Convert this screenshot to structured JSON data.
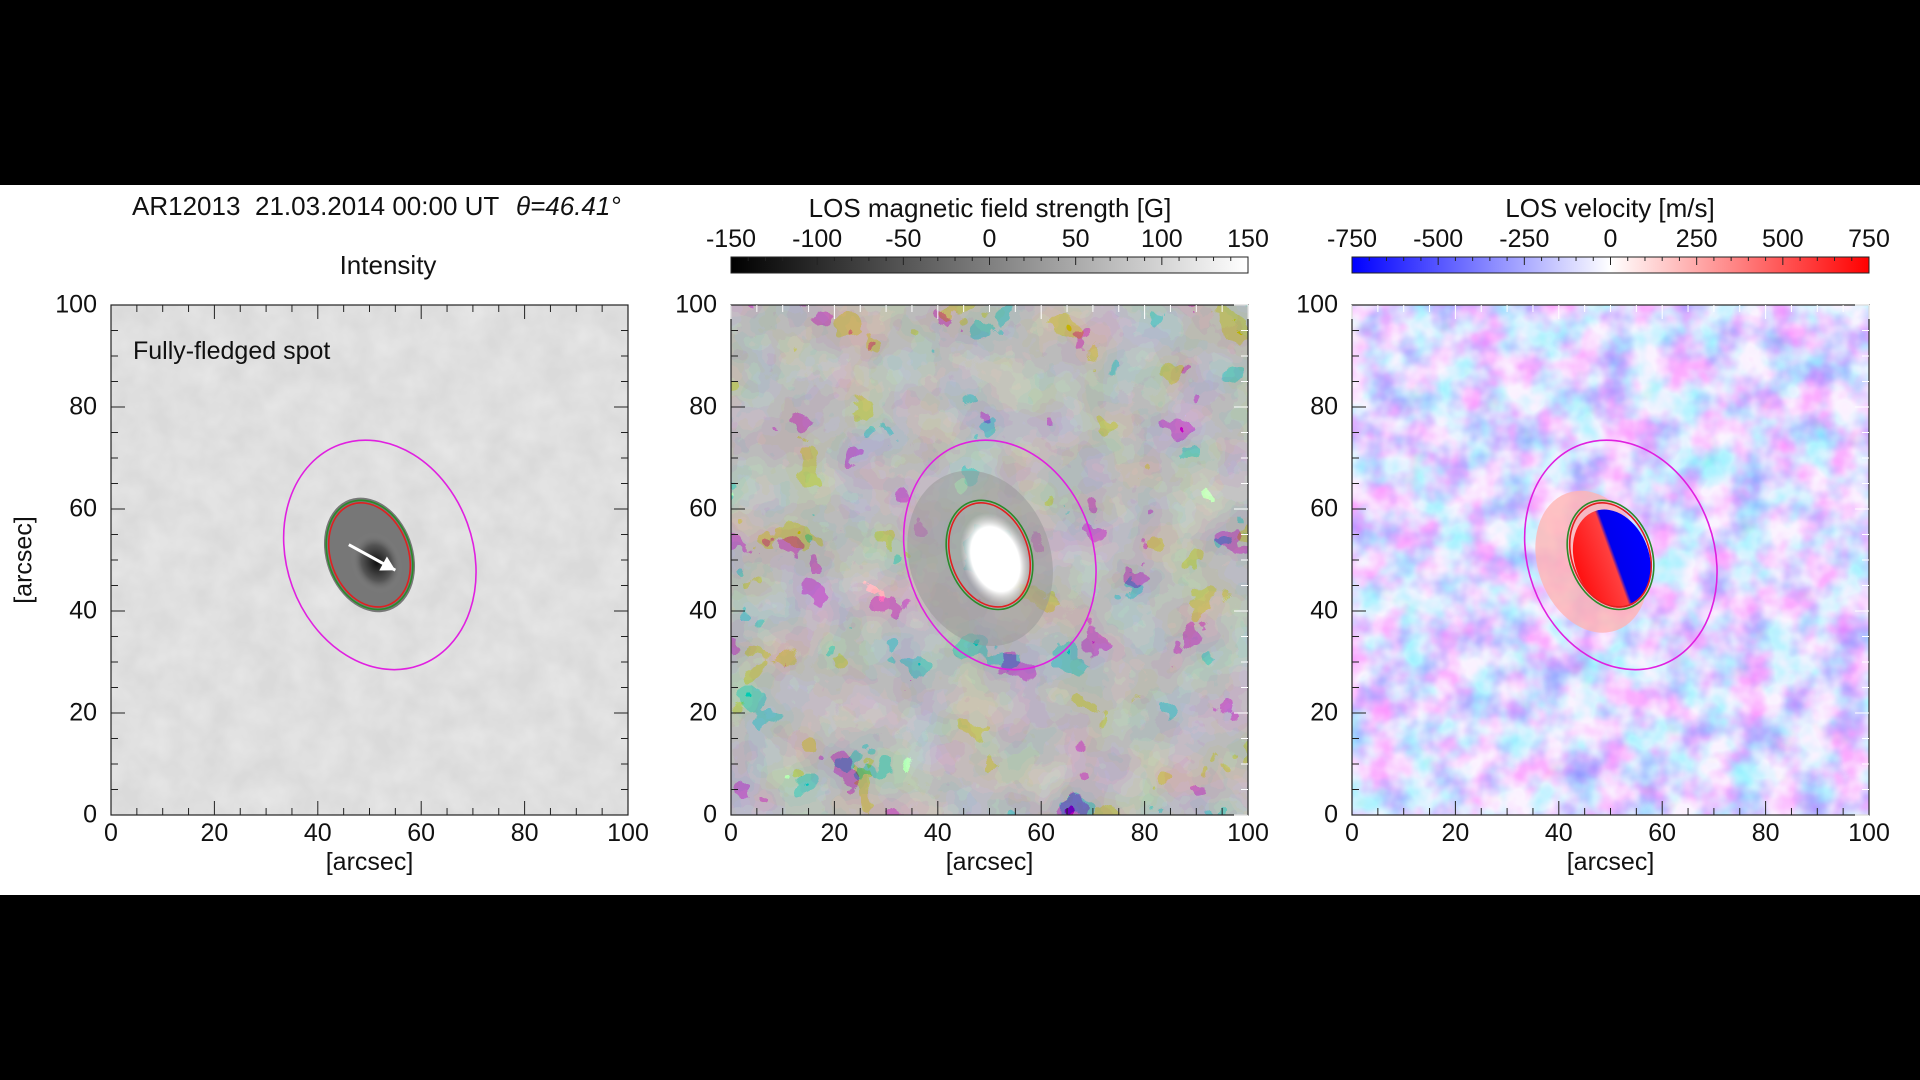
{
  "header": {
    "region": "AR12013",
    "datetime": "21.03.2014 00:00 UT",
    "theta": "θ=46.41°"
  },
  "panels": [
    {
      "title": "Intensity",
      "annotation": "Fully-fledged spot",
      "colormap": "gray-bright",
      "colorbar": null
    },
    {
      "title": "LOS magnetic field strength [G]",
      "annotation": "",
      "colormap": "gray-diverging",
      "colorbar": {
        "ticks": [
          "-150",
          "-100",
          "-50",
          "0",
          "50",
          "100",
          "150"
        ],
        "range": [
          -150,
          150
        ],
        "colors": [
          "#000000",
          "#ffffff"
        ]
      }
    },
    {
      "title": "LOS velocity [m/s]",
      "annotation": "",
      "colormap": "blue-white-red",
      "colorbar": {
        "ticks": [
          "-750",
          "-500",
          "-250",
          "0",
          "250",
          "500",
          "750"
        ],
        "range": [
          -750,
          750
        ],
        "colors": [
          "#0000ff",
          "#ffffff",
          "#ff0000"
        ]
      }
    }
  ],
  "chart_data": {
    "type": "heatmap",
    "xlabel": "[arcsec]",
    "ylabel": "[arcsec]",
    "xlim": [
      0,
      100
    ],
    "ylim": [
      0,
      100
    ],
    "xticks": [
      "0",
      "20",
      "40",
      "60",
      "80",
      "100"
    ],
    "yticks": [
      "0",
      "20",
      "40",
      "60",
      "80",
      "100"
    ],
    "contours": [
      {
        "name": "outer ellipse",
        "color": "#e020e0",
        "center": [
          52,
          51
        ],
        "semi_axes": [
          18,
          23
        ],
        "tilt_deg": -20
      },
      {
        "name": "green contour",
        "color": "#2a8a2a",
        "center": [
          50,
          51
        ],
        "semi_axes": [
          8,
          11
        ],
        "tilt_deg": -20
      },
      {
        "name": "red contour",
        "color": "#e02020",
        "center": [
          50,
          51
        ],
        "semi_axes": [
          7.5,
          10.5
        ],
        "tilt_deg": -20
      }
    ],
    "arrow": {
      "color": "#ffffff",
      "from": [
        46,
        53
      ],
      "to": [
        55,
        48
      ]
    },
    "grid": false
  }
}
